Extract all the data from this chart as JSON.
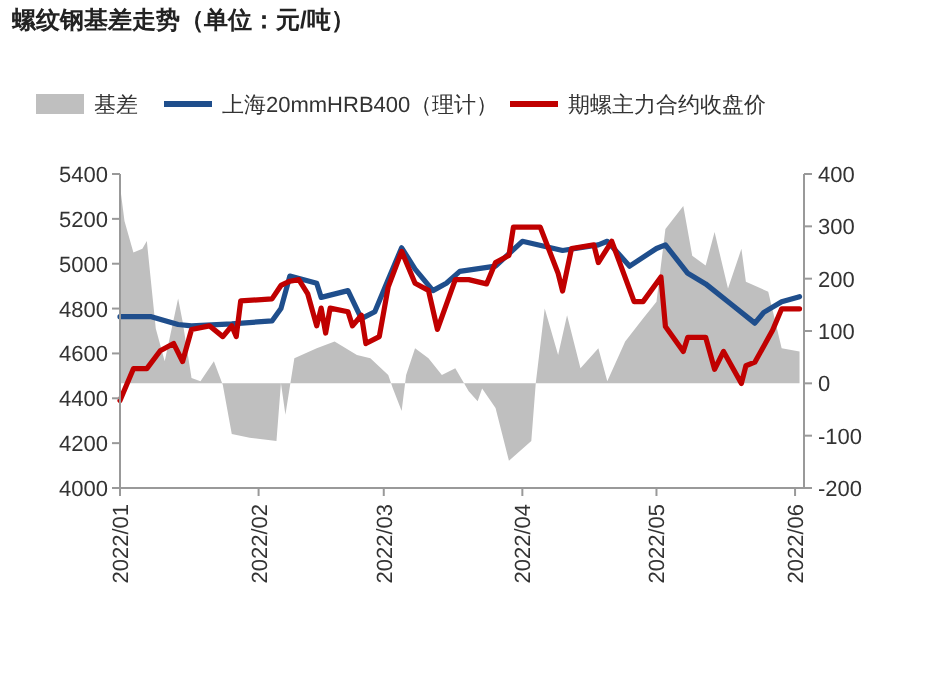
{
  "chart_data": {
    "type": "line",
    "title": "螺纹钢基差走势（单位：元/吨）",
    "xlim": [
      "2022-01-01",
      "2022-06-03"
    ],
    "xticks": [
      {
        "value": "2022-01-01",
        "label": "2022/01"
      },
      {
        "value": "2022-02-01",
        "label": "2022/02"
      },
      {
        "value": "2022-03-01",
        "label": "2022/03"
      },
      {
        "value": "2022-04-01",
        "label": "2022/04"
      },
      {
        "value": "2022-05-01",
        "label": "2022/05"
      },
      {
        "value": "2022-06-01",
        "label": "2022/06"
      }
    ],
    "ylim": [
      4000,
      5400
    ],
    "yticks": [
      4000,
      4200,
      4400,
      4600,
      4800,
      5000,
      5200,
      5400
    ],
    "y2lim": [
      -200,
      400
    ],
    "y2ticks": [
      -200,
      -100,
      0,
      100,
      200,
      300,
      400
    ],
    "legend": "top",
    "grid": false,
    "series": [
      {
        "name": "基差",
        "type": "area",
        "axis": "y2",
        "color": "#bfbfbf",
        "x": [
          "2022-01-01",
          "2022-01-02",
          "2022-01-04",
          "2022-01-06",
          "2022-01-07",
          "2022-01-09",
          "2022-01-11",
          "2022-01-14",
          "2022-01-15",
          "2022-01-17",
          "2022-01-19",
          "2022-01-22",
          "2022-01-24",
          "2022-01-26",
          "2022-01-30",
          "2022-02-05",
          "2022-02-06",
          "2022-02-07",
          "2022-02-09",
          "2022-02-14",
          "2022-02-18",
          "2022-02-23",
          "2022-02-26",
          "2022-03-02",
          "2022-03-03",
          "2022-03-05",
          "2022-03-06",
          "2022-03-08",
          "2022-03-11",
          "2022-03-14",
          "2022-03-17",
          "2022-03-20",
          "2022-03-22",
          "2022-03-23",
          "2022-03-26",
          "2022-03-29",
          "2022-04-03",
          "2022-04-04",
          "2022-04-06",
          "2022-04-09",
          "2022-04-11",
          "2022-04-14",
          "2022-04-18",
          "2022-04-20",
          "2022-04-24",
          "2022-04-28",
          "2022-05-01",
          "2022-05-03",
          "2022-05-07",
          "2022-05-09",
          "2022-05-12",
          "2022-05-14",
          "2022-05-17",
          "2022-05-20",
          "2022-05-21",
          "2022-05-26",
          "2022-05-29",
          "2022-06-02"
        ],
        "values": [
          377,
          310,
          250,
          257,
          272,
          105,
          42,
          162,
          118,
          10,
          4,
          42,
          -3,
          -97,
          -104,
          -110,
          0,
          -60,
          48,
          67,
          80,
          54,
          48,
          16,
          -9,
          -53,
          16,
          67,
          48,
          16,
          29,
          -15,
          -34,
          -10,
          -47,
          -148,
          -110,
          0,
          143,
          54,
          130,
          29,
          67,
          4,
          80,
          124,
          156,
          295,
          339,
          244,
          225,
          289,
          181,
          257,
          194,
          175,
          67,
          61
        ]
      },
      {
        "name": "上海20mmHRB400（理计）",
        "color": "#1f4e8c",
        "x": [
          "2022-01-01",
          "2022-01-08",
          "2022-01-14",
          "2022-01-17",
          "2022-01-26",
          "2022-02-04",
          "2022-02-06",
          "2022-02-08",
          "2022-02-14",
          "2022-02-15",
          "2022-02-21",
          "2022-02-24",
          "2022-02-27",
          "2022-03-02",
          "2022-03-05",
          "2022-03-08",
          "2022-03-12",
          "2022-03-15",
          "2022-03-18",
          "2022-03-26",
          "2022-04-01",
          "2022-04-10",
          "2022-04-18",
          "2022-04-20",
          "2022-04-25",
          "2022-05-01",
          "2022-05-03",
          "2022-05-08",
          "2022-05-12",
          "2022-05-18",
          "2022-05-23",
          "2022-05-25",
          "2022-05-29",
          "2022-06-02"
        ],
        "values": [
          4764,
          4764,
          4729,
          4723,
          4732,
          4745,
          4800,
          4945,
          4913,
          4850,
          4880,
          4755,
          4786,
          4930,
          5071,
          4976,
          4880,
          4913,
          4966,
          4989,
          5100,
          5059,
          5084,
          5100,
          4989,
          5068,
          5084,
          4957,
          4910,
          4815,
          4735,
          4783,
          4830,
          4853
        ]
      },
      {
        "name": "期螺主力合约收盘价",
        "color": "#c00000",
        "x": [
          "2022-01-01",
          "2022-01-04",
          "2022-01-07",
          "2022-01-10",
          "2022-01-13",
          "2022-01-15",
          "2022-01-17",
          "2022-01-21",
          "2022-01-24",
          "2022-01-26",
          "2022-01-27",
          "2022-01-28",
          "2022-02-04",
          "2022-02-06",
          "2022-02-08",
          "2022-02-10",
          "2022-02-12",
          "2022-02-14",
          "2022-02-15",
          "2022-02-16",
          "2022-02-17",
          "2022-02-21",
          "2022-02-22",
          "2022-02-24",
          "2022-02-25",
          "2022-02-28",
          "2022-03-02",
          "2022-03-05",
          "2022-03-08",
          "2022-03-11",
          "2022-03-13",
          "2022-03-17",
          "2022-03-20",
          "2022-03-24",
          "2022-03-26",
          "2022-03-29",
          "2022-03-30",
          "2022-04-05",
          "2022-04-09",
          "2022-04-10",
          "2022-04-12",
          "2022-04-17",
          "2022-04-18",
          "2022-04-21",
          "2022-04-26",
          "2022-04-28",
          "2022-05-02",
          "2022-05-03",
          "2022-05-07",
          "2022-05-08",
          "2022-05-12",
          "2022-05-14",
          "2022-05-16",
          "2022-05-20",
          "2022-05-21",
          "2022-05-23",
          "2022-05-27",
          "2022-05-29",
          "2022-06-02"
        ],
        "values": [
          4390,
          4532,
          4532,
          4612,
          4644,
          4564,
          4707,
          4723,
          4675,
          4723,
          4675,
          4834,
          4843,
          4903,
          4922,
          4929,
          4865,
          4723,
          4802,
          4691,
          4802,
          4786,
          4723,
          4770,
          4644,
          4675,
          4897,
          5055,
          4913,
          4881,
          4707,
          4929,
          4929,
          4910,
          5005,
          5037,
          5163,
          5163,
          4957,
          4878,
          5068,
          5084,
          5005,
          5100,
          4831,
          4831,
          4941,
          4720,
          4609,
          4672,
          4672,
          4529,
          4609,
          4466,
          4545,
          4561,
          4704,
          4799,
          4799
        ]
      }
    ]
  }
}
